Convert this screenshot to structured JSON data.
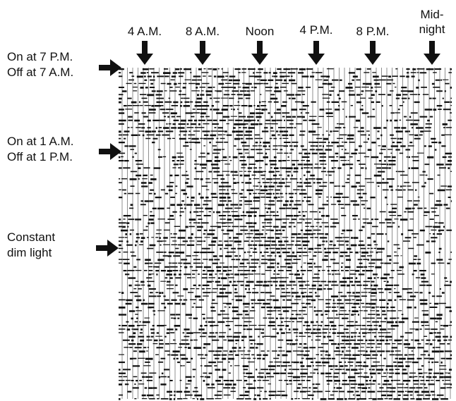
{
  "time_labels": [
    "4 A.M.",
    "8 A.M.",
    "Noon",
    "4 P.M.",
    "8 P.M."
  ],
  "midnight_label": [
    "Mid-",
    "night"
  ],
  "conditions": [
    [
      "On at 7 P.M.",
      "Off at 7 A.M."
    ],
    [
      "On at 1 A.M.",
      "Off at 1 P.M."
    ],
    [
      "Constant",
      "dim light"
    ]
  ]
}
